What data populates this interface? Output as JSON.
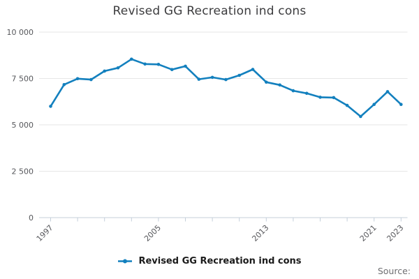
{
  "title": "Revised GG Recreation ind cons",
  "legend": {
    "label": "Revised GG Recreation ind cons"
  },
  "source_label": "Source:",
  "colors": {
    "line": "#1380be",
    "grid": "#e6e6e6",
    "axis": "#c4cfda",
    "title_text": "#3c3c3e",
    "tick_text": "#56575b",
    "legend_text": "#1b1b1b",
    "source_text": "#6e6e71",
    "background": "#ffffff"
  },
  "chart_data": {
    "type": "line",
    "title": "Revised GG Recreation ind cons",
    "x": [
      1997,
      1998,
      1999,
      2000,
      2001,
      2002,
      2003,
      2004,
      2005,
      2006,
      2007,
      2008,
      2009,
      2010,
      2011,
      2012,
      2013,
      2014,
      2015,
      2016,
      2017,
      2018,
      2019,
      2020,
      2021,
      2022,
      2023
    ],
    "series": [
      {
        "name": "Revised GG Recreation ind cons",
        "values": [
          6000,
          7170,
          7490,
          7440,
          7900,
          8070,
          8540,
          8280,
          8260,
          7980,
          8160,
          7460,
          7560,
          7440,
          7670,
          7990,
          7300,
          7150,
          6840,
          6700,
          6490,
          6470,
          6050,
          5450,
          6100,
          6790,
          6100
        ]
      }
    ],
    "ylim": [
      0,
      10000
    ],
    "y_ticks": [
      0,
      2500,
      5000,
      7500,
      10000
    ],
    "y_tick_labels": [
      "0",
      "2 500",
      "5 000",
      "7 500",
      "10 000"
    ],
    "x_tick_years": [
      1997,
      1999,
      2001,
      2003,
      2005,
      2007,
      2009,
      2011,
      2013,
      2015,
      2017,
      2019,
      2021,
      2023
    ],
    "x_axis_labels": [
      "1997",
      "2005",
      "2013",
      "2021",
      "2023"
    ],
    "x_label_rotation": -45,
    "grid": "horizontal-only",
    "legend_position": "bottom",
    "marker": "circle"
  }
}
